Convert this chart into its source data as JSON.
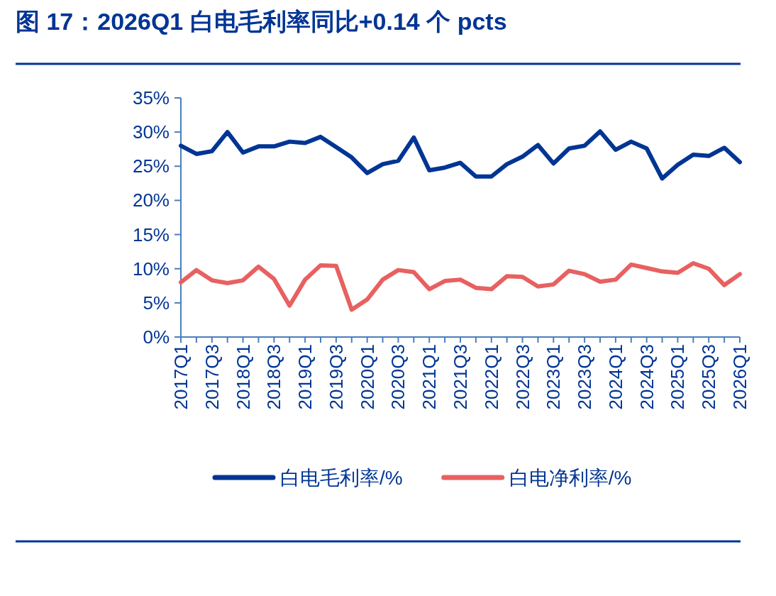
{
  "chart_data": {
    "type": "line",
    "title": "图 17：2026Q1 白电毛利率同比+0.14 个 pcts",
    "categories": [
      "2017Q1",
      null,
      "2017Q3",
      null,
      "2018Q1",
      null,
      "2018Q3",
      null,
      "2019Q1",
      null,
      "2019Q3",
      null,
      "2020Q1",
      null,
      "2020Q3",
      null,
      "2021Q1",
      null,
      "2021Q3",
      null,
      "2022Q1",
      null,
      "2022Q3",
      null,
      "2023Q1",
      null,
      "2023Q3",
      null,
      "2024Q1",
      null,
      "2024Q3",
      null,
      "2025Q1",
      null,
      "2025Q3",
      null,
      "2026Q1"
    ],
    "series": [
      {
        "name": "白电毛利率/%",
        "color": "#003594",
        "values": [
          28.0,
          26.8,
          27.2,
          30.0,
          27.0,
          27.9,
          27.9,
          28.6,
          28.4,
          29.3,
          27.8,
          26.3,
          24.0,
          25.3,
          25.8,
          29.2,
          24.4,
          24.8,
          25.5,
          23.5,
          23.5,
          25.3,
          26.4,
          28.1,
          25.4,
          27.6,
          28.0,
          30.1,
          27.4,
          28.6,
          27.6,
          23.2,
          25.2,
          26.7,
          26.5,
          27.7,
          25.6
        ]
      },
      {
        "name": "白电净利率/%",
        "color": "#e86060",
        "values": [
          8.0,
          9.8,
          8.3,
          7.9,
          8.3,
          10.3,
          8.5,
          4.6,
          8.4,
          10.5,
          10.4,
          4.0,
          5.5,
          8.4,
          9.8,
          9.5,
          7.0,
          8.2,
          8.4,
          7.2,
          7.0,
          8.9,
          8.8,
          7.4,
          7.7,
          9.7,
          9.2,
          8.1,
          8.4,
          10.6,
          10.1,
          9.6,
          9.4,
          10.8,
          10.0,
          7.6,
          9.2
        ]
      }
    ],
    "ylim": [
      0,
      35
    ],
    "yticks": [
      {
        "value": 0,
        "label": "0%"
      },
      {
        "value": 5,
        "label": "5%"
      },
      {
        "value": 10,
        "label": "10%"
      },
      {
        "value": 15,
        "label": "15%"
      },
      {
        "value": 20,
        "label": "20%"
      },
      {
        "value": 25,
        "label": "25%"
      },
      {
        "value": 30,
        "label": "30%"
      },
      {
        "value": 35,
        "label": "35%"
      }
    ],
    "grid": false,
    "legend": "bottom",
    "marker": "none",
    "line_style": "solid"
  }
}
